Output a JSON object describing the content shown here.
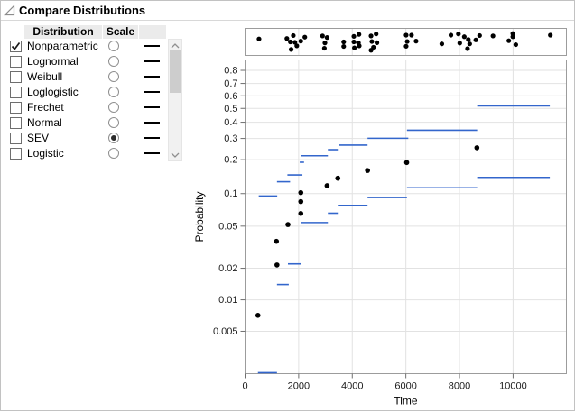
{
  "header": {
    "title": "Compare Distributions"
  },
  "distribution_panel": {
    "columns": {
      "distribution": "Distribution",
      "scale": "Scale",
      "line": ""
    },
    "rows": [
      {
        "label": "Nonparametric",
        "checked": true,
        "scale_selected": false
      },
      {
        "label": "Lognormal",
        "checked": false,
        "scale_selected": false
      },
      {
        "label": "Weibull",
        "checked": false,
        "scale_selected": false
      },
      {
        "label": "Loglogistic",
        "checked": false,
        "scale_selected": false
      },
      {
        "label": "Frechet",
        "checked": false,
        "scale_selected": false
      },
      {
        "label": "Normal",
        "checked": false,
        "scale_selected": false
      },
      {
        "label": "SEV",
        "checked": false,
        "scale_selected": true
      },
      {
        "label": "Logistic",
        "checked": false,
        "scale_selected": false
      }
    ]
  },
  "chart_data": {
    "type": "scatter",
    "title": "",
    "xlabel": "Time",
    "ylabel": "Probability",
    "x_ticks": [
      0,
      2000,
      4000,
      6000,
      8000,
      10000
    ],
    "xlim": [
      0,
      11990
    ],
    "y_scale": "sev-probability (log(-log(1-p)))",
    "y_ticks": [
      0.8,
      0.7,
      0.6,
      0.5,
      0.4,
      0.3,
      0.2,
      0.1,
      0.05,
      0.02,
      0.01,
      0.005
    ],
    "plim": [
      0.00196,
      0.868
    ],
    "grid": true,
    "colors": {
      "step": "#3366cc",
      "point": "#000000",
      "grid": "#e2e2e2",
      "frame": "#9c9c9c"
    },
    "event_plot_points": [
      [
        520,
        0.35
      ],
      [
        1560,
        0.33
      ],
      [
        1800,
        0.18
      ],
      [
        1690,
        0.5
      ],
      [
        1860,
        0.52
      ],
      [
        1930,
        0.7
      ],
      [
        1720,
        0.88
      ],
      [
        2080,
        0.46
      ],
      [
        2230,
        0.26
      ],
      [
        2890,
        0.2
      ],
      [
        3060,
        0.28
      ],
      [
        2980,
        0.55
      ],
      [
        2960,
        0.82
      ],
      [
        3680,
        0.5
      ],
      [
        3680,
        0.73
      ],
      [
        4060,
        0.22
      ],
      [
        4250,
        0.12
      ],
      [
        4060,
        0.5
      ],
      [
        4230,
        0.55
      ],
      [
        4080,
        0.8
      ],
      [
        4260,
        0.7
      ],
      [
        4700,
        0.2
      ],
      [
        4890,
        0.1
      ],
      [
        4730,
        0.48
      ],
      [
        4920,
        0.54
      ],
      [
        4790,
        0.77
      ],
      [
        4700,
        0.92
      ],
      [
        6010,
        0.16
      ],
      [
        6210,
        0.16
      ],
      [
        6050,
        0.48
      ],
      [
        6010,
        0.72
      ],
      [
        6380,
        0.46
      ],
      [
        7340,
        0.6
      ],
      [
        7680,
        0.16
      ],
      [
        7960,
        0.1
      ],
      [
        8180,
        0.24
      ],
      [
        8010,
        0.56
      ],
      [
        8330,
        0.38
      ],
      [
        8380,
        0.6
      ],
      [
        8300,
        0.84
      ],
      [
        8610,
        0.4
      ],
      [
        8750,
        0.18
      ],
      [
        9250,
        0.2
      ],
      [
        9840,
        0.44
      ],
      [
        9990,
        0.08
      ],
      [
        9990,
        0.24
      ],
      [
        10100,
        0.64
      ],
      [
        11390,
        0.16
      ]
    ],
    "nonparametric_steps_upper": [
      [
        510,
        1200,
        0.095
      ],
      [
        1190,
        1680,
        0.128
      ],
      [
        1580,
        2140,
        0.147
      ],
      [
        2040,
        2200,
        0.19
      ],
      [
        2100,
        3090,
        0.216
      ],
      [
        3090,
        3460,
        0.243
      ],
      [
        3510,
        4570,
        0.265
      ],
      [
        4570,
        6090,
        0.301
      ],
      [
        6040,
        8660,
        0.348
      ],
      [
        8660,
        11370,
        0.52
      ]
    ],
    "nonparametric_steps_lower": [
      [
        480,
        1190,
        0.002
      ],
      [
        1190,
        1630,
        0.014
      ],
      [
        1600,
        2100,
        0.022
      ],
      [
        2100,
        3090,
        0.054
      ],
      [
        3090,
        3460,
        0.066
      ],
      [
        3460,
        4570,
        0.078
      ],
      [
        4570,
        6040,
        0.092
      ],
      [
        6040,
        8660,
        0.113
      ],
      [
        8660,
        11370,
        0.14
      ]
    ],
    "points": [
      [
        480,
        0.0071
      ],
      [
        1170,
        0.036
      ],
      [
        1190,
        0.0215
      ],
      [
        1600,
        0.0517
      ],
      [
        2080,
        0.102
      ],
      [
        2080,
        0.0845
      ],
      [
        2080,
        0.0656
      ],
      [
        3060,
        0.118
      ],
      [
        3460,
        0.1376
      ],
      [
        4570,
        0.161
      ],
      [
        6030,
        0.189
      ],
      [
        8650,
        0.252
      ]
    ]
  }
}
